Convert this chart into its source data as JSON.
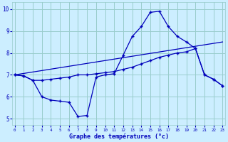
{
  "xlabel": "Graphe des températures (°c)",
  "bg_color": "#cceeff",
  "grid_color": "#99cccc",
  "line_color": "#0000bb",
  "x_ticks": [
    0,
    1,
    2,
    3,
    4,
    5,
    6,
    7,
    8,
    9,
    10,
    11,
    12,
    13,
    14,
    15,
    16,
    17,
    18,
    19,
    20,
    21,
    22,
    23
  ],
  "y_ticks": [
    5,
    6,
    7,
    8,
    9,
    10
  ],
  "ylim": [
    4.7,
    10.3
  ],
  "xlim": [
    -0.3,
    23.3
  ],
  "line1_x": [
    0,
    1,
    2,
    3,
    4,
    5,
    6,
    7,
    8,
    9,
    10,
    11,
    12,
    13,
    14,
    15,
    16,
    17,
    18,
    19,
    20,
    21,
    22,
    23
  ],
  "line1_y": [
    7.0,
    6.95,
    6.75,
    6.75,
    6.8,
    6.85,
    6.9,
    7.0,
    7.0,
    7.05,
    7.1,
    7.15,
    7.25,
    7.35,
    7.5,
    7.65,
    7.8,
    7.9,
    8.0,
    8.05,
    8.2,
    7.0,
    6.8,
    6.5
  ],
  "line2_x": [
    0,
    1,
    2,
    3,
    4,
    5,
    6,
    7,
    8,
    9,
    10,
    11,
    12,
    13,
    14,
    15,
    16,
    17,
    18,
    19,
    20,
    21,
    22,
    23
  ],
  "line2_y": [
    7.0,
    6.95,
    6.75,
    6.0,
    5.85,
    5.8,
    5.75,
    5.1,
    5.15,
    6.9,
    7.0,
    7.05,
    7.9,
    8.75,
    9.2,
    9.85,
    9.9,
    9.2,
    8.75,
    8.5,
    8.2,
    7.0,
    6.8,
    6.5
  ],
  "line3_x": [
    0,
    23
  ],
  "line3_y": [
    7.0,
    8.5
  ]
}
